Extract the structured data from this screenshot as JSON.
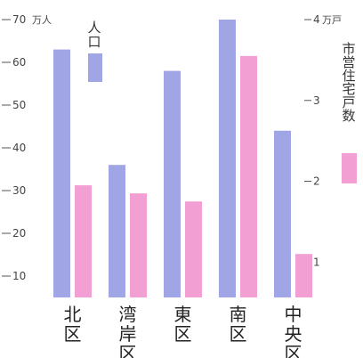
{
  "chart_data": {
    "type": "bar",
    "categories": [
      "北区",
      "湾岸区",
      "東区",
      "南区",
      "中央区"
    ],
    "series": [
      {
        "name": "人口",
        "axis": "left",
        "color": "#a0a5e6",
        "values": [
          63,
          36,
          58,
          70,
          44
        ]
      },
      {
        "name": "市営住宅戸数",
        "axis": "right",
        "color": "#f29fd3",
        "values": [
          1.95,
          1.85,
          1.75,
          3.55,
          1.1
        ]
      }
    ],
    "left_axis": {
      "unit": "万人",
      "ylim": [
        5,
        70
      ],
      "ticks": [
        10,
        20,
        30,
        40,
        50,
        60,
        70
      ]
    },
    "right_axis": {
      "unit": "万戸",
      "ylim": [
        0.5625,
        4
      ],
      "ticks": [
        1,
        2,
        3,
        4
      ]
    }
  }
}
